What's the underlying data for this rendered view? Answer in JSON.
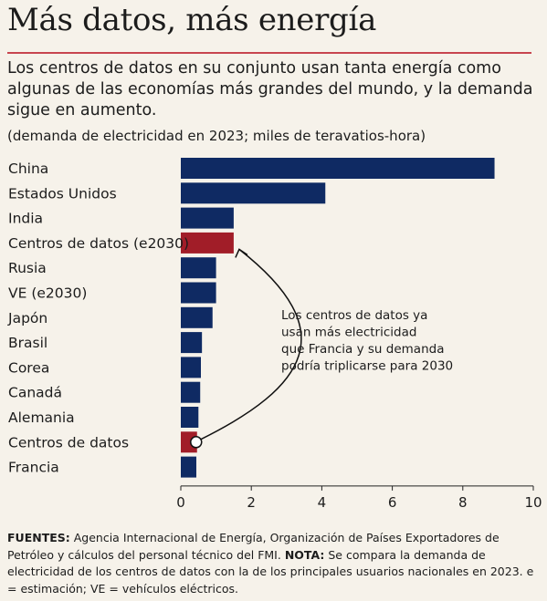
{
  "title": "Más datos, más energía",
  "subtitle": "Los centros de datos en su conjunto usan tanta energía como algunas de las economías más grandes del mundo, y la demanda sigue en aumento.",
  "units": "(demanda de electricidad en 2023; miles de teravatios-hora)",
  "annotation": [
    "Los centros de datos ya",
    "usan más electricidad",
    "que Francia y su demanda",
    "podría triplicarse para 2030"
  ],
  "footnote": {
    "sources_label": "FUENTES:",
    "sources_text": " Agencia Internacional de Energía, Organización de Países Exportadores de Petróleo y cálculos del personal técnico del FMI. ",
    "note_label": "NOTA:",
    "note_text": " Se compara la demanda de electricidad de los centros de datos con la de los principales usuarios nacionales en 2023. e = estimación; VE = vehículos eléctricos."
  },
  "colors": {
    "default": "#0f2a63",
    "highlight": "#a11d28"
  },
  "chart_data": {
    "type": "bar",
    "orientation": "horizontal",
    "title": "Más datos, más energía",
    "categories": [
      "China",
      "Estados Unidos",
      "India",
      "Centros de datos (e2030)",
      "Rusia",
      "VE (e2030)",
      "Japón",
      "Brasil",
      "Corea",
      "Canadá",
      "Alemania",
      "Centros de datos",
      "Francia"
    ],
    "values": [
      8.9,
      4.1,
      1.5,
      1.5,
      1.0,
      1.0,
      0.9,
      0.6,
      0.57,
      0.55,
      0.5,
      0.46,
      0.44
    ],
    "highlight": [
      "Centros de datos (e2030)",
      "Centros de datos"
    ],
    "xlim": [
      0,
      10
    ],
    "xticks": [
      0,
      2,
      4,
      6,
      8,
      10
    ],
    "grid": false
  }
}
